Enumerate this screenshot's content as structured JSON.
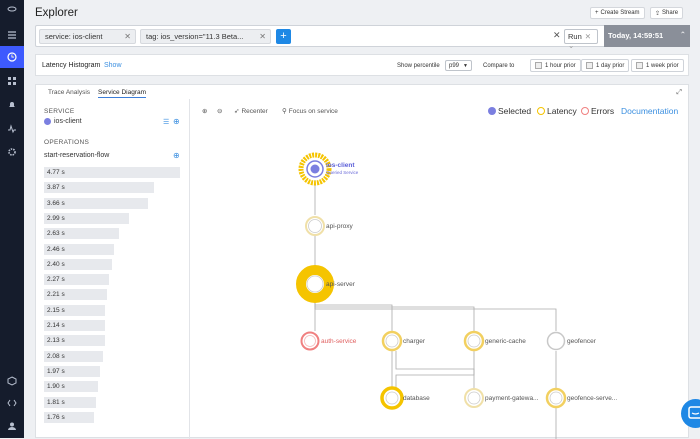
{
  "page": {
    "title": "Explorer"
  },
  "header": {
    "create_stream": "Create Stream",
    "share": "Share"
  },
  "query": {
    "chips": [
      {
        "label": "service:  ios-client"
      },
      {
        "label": "tag:  ios_version=\"11.3 Beta..."
      }
    ],
    "run_label": "Run",
    "date": "Today, 14:59:51"
  },
  "latency": {
    "label": "Latency Histogram",
    "show": "Show",
    "show_percentile": "Show percentile",
    "percentile": "p99",
    "compare_to": "Compare to",
    "compare": [
      "1 hour prior",
      "1 day prior",
      "1 week prior"
    ]
  },
  "tabs": [
    "Trace Analysis",
    "Service Diagram"
  ],
  "sidebar": {
    "service_label": "SERVICE",
    "service": "ios-client",
    "operations_label": "OPERATIONS",
    "operation": "start-reservation-flow",
    "durations": [
      {
        "label": "4.77 s",
        "value": 4.77
      },
      {
        "label": "3.87 s",
        "value": 3.87
      },
      {
        "label": "3.66 s",
        "value": 3.66
      },
      {
        "label": "2.99 s",
        "value": 2.99
      },
      {
        "label": "2.63 s",
        "value": 2.63
      },
      {
        "label": "2.46 s",
        "value": 2.46
      },
      {
        "label": "2.40 s",
        "value": 2.4
      },
      {
        "label": "2.27 s",
        "value": 2.27
      },
      {
        "label": "2.21 s",
        "value": 2.21
      },
      {
        "label": "2.15 s",
        "value": 2.15
      },
      {
        "label": "2.14 s",
        "value": 2.14
      },
      {
        "label": "2.13 s",
        "value": 2.13
      },
      {
        "label": "2.08 s",
        "value": 2.08
      },
      {
        "label": "1.97 s",
        "value": 1.97
      },
      {
        "label": "1.90 s",
        "value": 1.9
      },
      {
        "label": "1.81 s",
        "value": 1.81
      },
      {
        "label": "1.76 s",
        "value": 1.76
      }
    ]
  },
  "toolbar": {
    "recenter": "Recenter",
    "focus": "Focus on service"
  },
  "legend": {
    "selected": "Selected",
    "latency": "Latency",
    "errors": "Errors",
    "documentation": "Documentation",
    "colors": {
      "selected": "#7b7fe0",
      "latency": "#f5c400",
      "errors": "#f08080",
      "documentation": "#3b8fe0"
    }
  },
  "graph": {
    "nodes": [
      {
        "id": "ios-client",
        "label": "ios-client",
        "sub": "Queried Service",
        "type": "selected"
      },
      {
        "id": "api-proxy",
        "label": "api-proxy",
        "type": "latency-light"
      },
      {
        "id": "api-server",
        "label": "api-server",
        "type": "latency-heavy"
      },
      {
        "id": "auth-service",
        "label": "auth-service",
        "type": "error"
      },
      {
        "id": "charger",
        "label": "charger",
        "type": "latency-medium"
      },
      {
        "id": "generic-cache",
        "label": "generic-cache",
        "type": "latency-medium"
      },
      {
        "id": "geofencer",
        "label": "geofencer",
        "type": "normal"
      },
      {
        "id": "database",
        "label": "database",
        "type": "latency-medium"
      },
      {
        "id": "payment-gateway",
        "label": "payment-gatewa...",
        "type": "latency-light"
      },
      {
        "id": "geofence-server",
        "label": "geofence-serve...",
        "type": "latency-medium"
      }
    ]
  }
}
